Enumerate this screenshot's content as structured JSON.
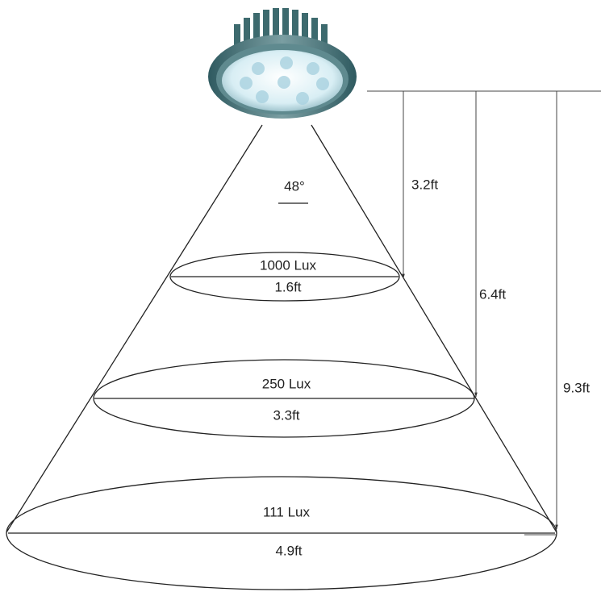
{
  "angle": "48°",
  "levels": [
    {
      "lux": "1000 Lux",
      "diameter": "1.6ft",
      "distance": "3.2ft"
    },
    {
      "lux": "250 Lux",
      "diameter": "3.3ft",
      "distance": "6.4ft"
    },
    {
      "lux": "111 Lux",
      "diameter": "4.9ft",
      "distance": "9.3ft"
    }
  ]
}
